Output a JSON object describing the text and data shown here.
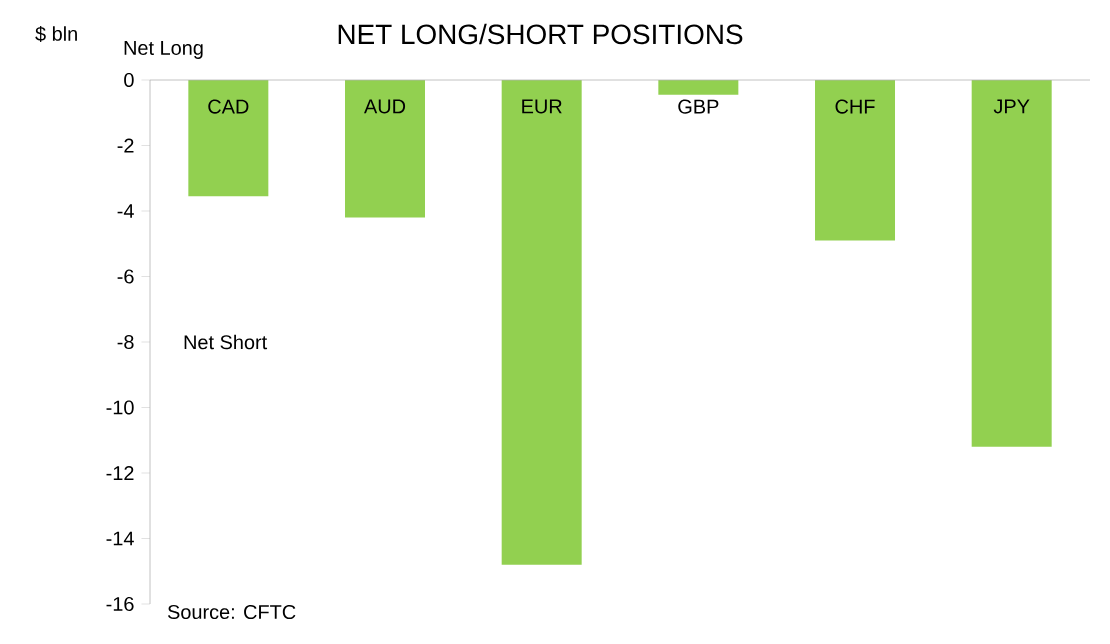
{
  "chart_data": {
    "type": "bar",
    "title": "NET LONG/SHORT POSITIONS",
    "ylabel": "$ bln",
    "categories": [
      "CAD",
      "AUD",
      "EUR",
      "GBP",
      "CHF",
      "JPY"
    ],
    "values": [
      -3.55,
      -4.2,
      -14.8,
      -0.45,
      -4.9,
      -11.2
    ],
    "color": "#92d050",
    "ylim": [
      -16,
      0
    ],
    "yticks": [
      0,
      -2,
      -4,
      -6,
      -8,
      -10,
      -12,
      -14,
      -16
    ],
    "annotations": [
      "Net Long",
      "Net Short",
      "Source: CFTC"
    ]
  }
}
